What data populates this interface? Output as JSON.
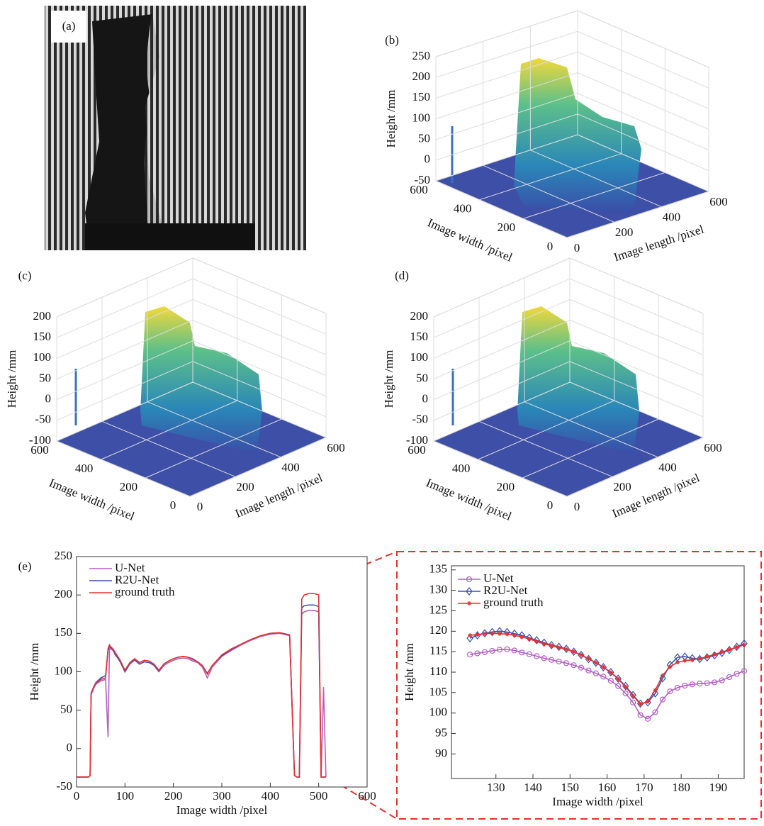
{
  "chart_data": [
    {
      "type": "image",
      "label": "(a)"
    },
    {
      "type": "surface3d",
      "label": "(b)",
      "zlabel": "Height /mm",
      "xlabel": "Image length /pixel",
      "ylabel": "Image width /pixel",
      "xlim": [
        0,
        600
      ],
      "ylim": [
        0,
        600
      ],
      "zlim": [
        -50,
        250
      ],
      "xticks": [
        0,
        200,
        400,
        600
      ],
      "yticks": [
        0,
        200,
        400,
        600
      ],
      "zticks": [
        -50,
        0,
        50,
        100,
        150,
        200,
        250
      ]
    },
    {
      "type": "surface3d",
      "label": "(c)",
      "zlabel": "Height /mm",
      "xlabel": "Image length /pixel",
      "ylabel": "Image width /pixel",
      "xlim": [
        0,
        600
      ],
      "ylim": [
        0,
        600
      ],
      "zlim": [
        -100,
        200
      ],
      "xticks": [
        0,
        200,
        400,
        600
      ],
      "yticks": [
        0,
        200,
        400,
        600
      ],
      "zticks": [
        -100,
        -50,
        0,
        50,
        100,
        150,
        200
      ]
    },
    {
      "type": "surface3d",
      "label": "(d)",
      "zlabel": "Height /mm",
      "xlabel": "Image length /pixel",
      "ylabel": "Image width /pixel",
      "xlim": [
        0,
        600
      ],
      "ylim": [
        0,
        600
      ],
      "zlim": [
        -100,
        200
      ],
      "xticks": [
        0,
        200,
        400,
        600
      ],
      "yticks": [
        0,
        200,
        400,
        600
      ],
      "zticks": [
        -100,
        -50,
        0,
        50,
        100,
        150,
        200
      ]
    },
    {
      "type": "line",
      "label": "(e)",
      "xlabel": "Image width /pixel",
      "ylabel": "Height /mm",
      "xlim": [
        0,
        600
      ],
      "ylim": [
        -50,
        250
      ],
      "xticks": [
        0,
        100,
        200,
        300,
        400,
        500,
        600
      ],
      "yticks": [
        -50,
        0,
        50,
        100,
        150,
        200,
        250
      ],
      "x": [
        0,
        25,
        28,
        30,
        35,
        40,
        50,
        60,
        65,
        68,
        70,
        75,
        80,
        90,
        100,
        110,
        120,
        130,
        140,
        150,
        160,
        170,
        180,
        190,
        200,
        210,
        220,
        230,
        240,
        250,
        260,
        270,
        280,
        290,
        300,
        320,
        340,
        360,
        380,
        400,
        420,
        440,
        450,
        455,
        460,
        465,
        470,
        480,
        490,
        500,
        505,
        510,
        515
      ],
      "series": [
        {
          "name": "U-Net",
          "color": "#b45fc4",
          "values": [
            -37,
            -37,
            -35,
            70,
            78,
            84,
            88,
            90,
            15,
            132,
            130,
            128,
            122,
            114,
            100,
            110,
            115,
            110,
            113,
            112,
            108,
            100,
            108,
            112,
            115,
            117,
            118,
            117,
            114,
            112,
            106,
            92,
            106,
            113,
            120,
            128,
            135,
            141,
            146,
            149,
            150,
            147,
            -35,
            -37,
            -37,
            175,
            178,
            180,
            180,
            178,
            -37,
            80,
            -37
          ]
        },
        {
          "name": "R2U-Net",
          "color": "#3a4fb4",
          "values": [
            -37,
            -37,
            -35,
            72,
            80,
            86,
            92,
            95,
            128,
            134,
            132,
            129,
            123,
            113,
            100,
            111,
            116,
            110,
            113,
            112,
            109,
            101,
            110,
            114,
            117,
            119,
            120,
            119,
            117,
            113,
            108,
            98,
            108,
            115,
            121,
            129,
            136,
            142,
            147,
            150,
            151,
            148,
            -35,
            -37,
            -37,
            183,
            186,
            187,
            187,
            185,
            -37,
            -37,
            -37
          ]
        },
        {
          "name": "ground truth",
          "color": "#e8302a",
          "values": [
            -37,
            -37,
            -35,
            70,
            80,
            85,
            90,
            92,
            130,
            135,
            133,
            130,
            125,
            115,
            102,
            112,
            117,
            112,
            115,
            114,
            110,
            102,
            110,
            114,
            117,
            119,
            120,
            119,
            116,
            113,
            108,
            97,
            108,
            115,
            122,
            130,
            136,
            142,
            147,
            150,
            151,
            148,
            -35,
            -37,
            -37,
            195,
            200,
            202,
            202,
            200,
            -37,
            -37,
            -37
          ]
        }
      ]
    },
    {
      "type": "line",
      "xlabel": "Image width /pixel",
      "ylabel": "Height /mm",
      "xlim": [
        118,
        197
      ],
      "ylim": [
        84,
        136
      ],
      "xticks": [
        130,
        140,
        150,
        160,
        170,
        180,
        190
      ],
      "yticks": [
        90,
        95,
        100,
        105,
        110,
        115,
        120,
        125,
        130,
        135
      ],
      "x": [
        123,
        125,
        127,
        129,
        131,
        133,
        135,
        137,
        139,
        141,
        143,
        145,
        147,
        149,
        151,
        153,
        155,
        157,
        159,
        161,
        163,
        165,
        167,
        169,
        171,
        173,
        175,
        177,
        179,
        181,
        183,
        185,
        187,
        189,
        191,
        193,
        195,
        197
      ],
      "series": [
        {
          "name": "U-Net",
          "color": "#b45fc4",
          "marker": "circle",
          "values": [
            114.3,
            114.6,
            114.9,
            115.2,
            115.5,
            115.6,
            115.3,
            114.8,
            114.4,
            113.9,
            113.4,
            113.0,
            112.6,
            112.2,
            111.7,
            111.1,
            110.4,
            109.7,
            108.9,
            107.9,
            106.6,
            104.8,
            102.6,
            99.5,
            98.6,
            100.2,
            103.3,
            105.3,
            106.2,
            106.7,
            107.0,
            107.2,
            107.3,
            107.5,
            108.0,
            108.8,
            109.6,
            110.3
          ]
        },
        {
          "name": "R2U-Net",
          "color": "#3a4fb4",
          "marker": "diamond",
          "values": [
            118.3,
            119.0,
            119.5,
            119.8,
            120.0,
            119.8,
            119.4,
            119.0,
            118.4,
            117.8,
            117.2,
            116.6,
            116.2,
            115.7,
            115.0,
            114.2,
            113.2,
            112.3,
            111.2,
            110.0,
            108.4,
            106.6,
            104.4,
            102.3,
            102.6,
            104.8,
            108.5,
            111.8,
            113.6,
            113.8,
            113.4,
            113.2,
            113.6,
            114.1,
            114.7,
            115.4,
            116.2,
            117.0
          ]
        },
        {
          "name": "ground truth",
          "color": "#e8302a",
          "marker": "star",
          "values": [
            119.0,
            119.2,
            119.4,
            119.5,
            119.4,
            119.3,
            119.0,
            118.6,
            118.1,
            117.5,
            116.9,
            116.5,
            116.0,
            115.6,
            115.0,
            114.2,
            113.3,
            112.3,
            111.2,
            109.9,
            108.3,
            106.4,
            104.2,
            102.2,
            102.8,
            105.6,
            109.2,
            111.3,
            112.4,
            112.8,
            113.0,
            113.3,
            113.8,
            114.3,
            114.9,
            115.5,
            116.1,
            116.7
          ]
        }
      ]
    }
  ]
}
